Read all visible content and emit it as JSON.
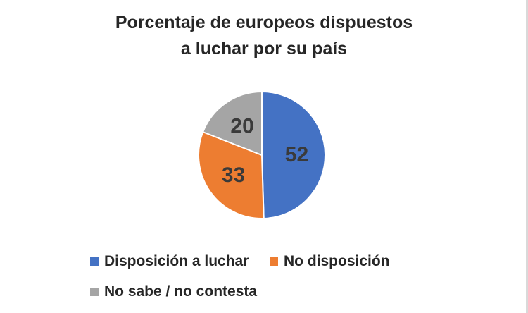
{
  "chart_data": {
    "type": "pie",
    "title_lines": [
      "Porcentaje de europeos dispuestos",
      "a luchar por su país"
    ],
    "categories": [
      "Disposición a luchar",
      "No disposición",
      "No sabe / no contesta"
    ],
    "values": [
      52,
      33,
      20
    ],
    "colors": [
      "#4472c4",
      "#ed7d31",
      "#a5a5a5"
    ],
    "legend_position": "bottom"
  }
}
